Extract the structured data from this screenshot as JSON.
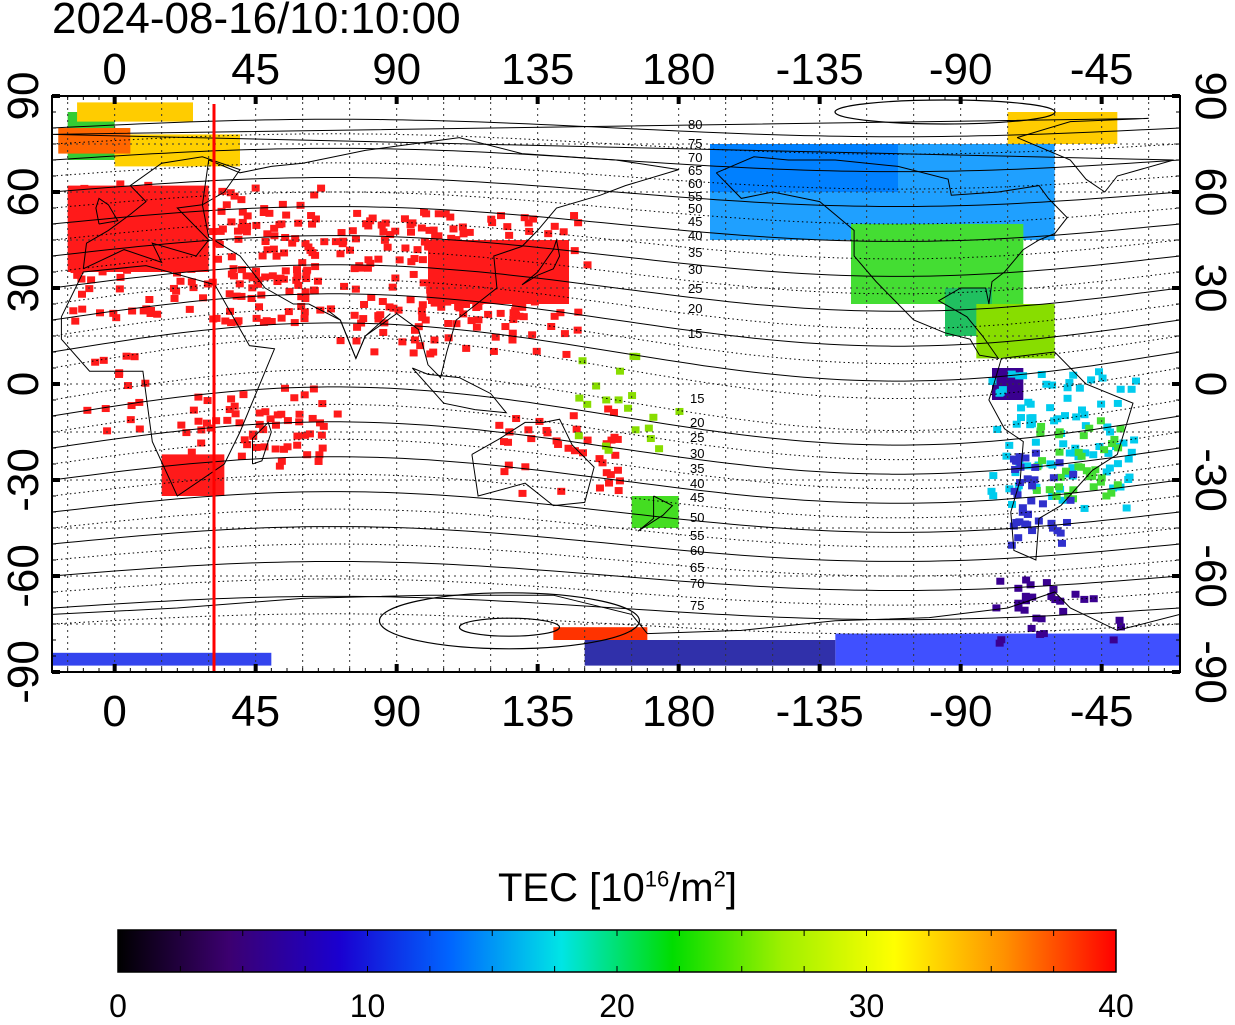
{
  "timestamp": "2024-08-16/10:10:00",
  "map": {
    "top_lon_labels": [
      "0",
      "45",
      "90",
      "135",
      "180",
      "-135",
      "-90",
      "-45"
    ],
    "bottom_lon_labels": [
      "0",
      "45",
      "90",
      "135",
      "180",
      "-135",
      "-90",
      "-45"
    ],
    "left_lat_labels": [
      "90",
      "60",
      "30",
      "0",
      "-30",
      "-60",
      "-90"
    ],
    "right_lat_labels": [
      "90",
      "60",
      "30",
      "0",
      "-30",
      "-60",
      "-90"
    ],
    "mlat_north_labels": [
      "80",
      "75",
      "70",
      "65",
      "60",
      "55",
      "50",
      "45",
      "40",
      "35",
      "30",
      "25",
      "20",
      "15"
    ],
    "mlat_south_labels": [
      "15",
      "20",
      "25",
      "30",
      "35",
      "40",
      "45",
      "50",
      "55",
      "60",
      "65",
      "70",
      "75"
    ],
    "highlight_line_color": "#ff0000",
    "coastline_color": "#000000"
  },
  "colorbar": {
    "title_text": "TEC  [10",
    "title_exp": "16",
    "title_unit": "/m",
    "title_unit_exp": "2",
    "title_close": "]",
    "ticks": [
      "0",
      "10",
      "20",
      "30",
      "40"
    ],
    "range": [
      0,
      40
    ],
    "colors": [
      "#000000",
      "#3c0070",
      "#1a00d0",
      "#0066ff",
      "#00e5e5",
      "#00dd00",
      "#a0f000",
      "#ffff00",
      "#ff9000",
      "#ff0000"
    ]
  }
}
